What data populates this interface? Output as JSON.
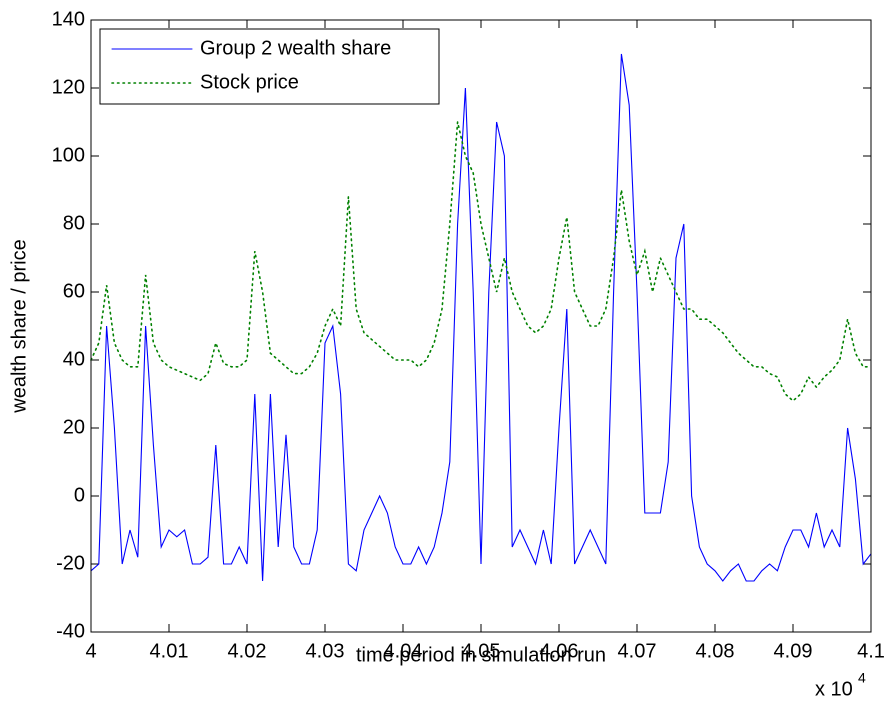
{
  "chart_data": {
    "type": "line",
    "x_label": "time period in simulation run",
    "y_label": "wealth share / price",
    "x_multiplier": "x 10",
    "x_multiplier_exponent": "4",
    "xlim": [
      4,
      4.1
    ],
    "xticks": [
      4,
      4.01,
      4.02,
      4.03,
      4.04,
      4.05,
      4.06,
      4.07,
      4.08,
      4.09,
      4.1
    ],
    "ylim": [
      -40,
      140
    ],
    "yticks": [
      -40,
      -20,
      0,
      20,
      40,
      60,
      80,
      100,
      120,
      140
    ],
    "legend": "upper left",
    "x": [
      4.0,
      4.001,
      4.002,
      4.003,
      4.004,
      4.005,
      4.006,
      4.007,
      4.008,
      4.009,
      4.01,
      4.011,
      4.012,
      4.013,
      4.014,
      4.015,
      4.016,
      4.017,
      4.018,
      4.019,
      4.02,
      4.021,
      4.022,
      4.023,
      4.024,
      4.025,
      4.026,
      4.027,
      4.028,
      4.029,
      4.03,
      4.031,
      4.032,
      4.033,
      4.034,
      4.035,
      4.036,
      4.037,
      4.038,
      4.039,
      4.04,
      4.041,
      4.042,
      4.043,
      4.044,
      4.045,
      4.046,
      4.047,
      4.048,
      4.049,
      4.05,
      4.051,
      4.052,
      4.053,
      4.054,
      4.055,
      4.056,
      4.057,
      4.058,
      4.059,
      4.06,
      4.061,
      4.062,
      4.063,
      4.064,
      4.065,
      4.066,
      4.067,
      4.068,
      4.069,
      4.07,
      4.071,
      4.072,
      4.073,
      4.074,
      4.075,
      4.076,
      4.077,
      4.078,
      4.079,
      4.08,
      4.081,
      4.082,
      4.083,
      4.084,
      4.085,
      4.086,
      4.087,
      4.088,
      4.089,
      4.09,
      4.091,
      4.092,
      4.093,
      4.094,
      4.095,
      4.096,
      4.097,
      4.098,
      4.099,
      4.1
    ],
    "series": [
      {
        "name": "Group 2 wealth share",
        "color": "#0000ff",
        "line_style": "solid",
        "values": [
          -22,
          -20,
          50,
          20,
          -20,
          -10,
          -18,
          50,
          15,
          -15,
          -10,
          -12,
          -10,
          -20,
          -20,
          -18,
          15,
          -20,
          -20,
          -15,
          -20,
          30,
          -25,
          30,
          -15,
          18,
          -15,
          -20,
          -20,
          -10,
          45,
          50,
          30,
          -20,
          -22,
          -10,
          -5,
          0,
          -5,
          -15,
          -20,
          -20,
          -15,
          -20,
          -15,
          -5,
          10,
          80,
          120,
          60,
          -20,
          60,
          110,
          100,
          -15,
          -10,
          -15,
          -20,
          -10,
          -20,
          20,
          55,
          -20,
          -15,
          -10,
          -15,
          -20,
          60,
          130,
          115,
          60,
          -5,
          -5,
          -5,
          10,
          70,
          80,
          0,
          -15,
          -20,
          -22,
          -25,
          -22,
          -20,
          -25,
          -25,
          -22,
          -20,
          -22,
          -15,
          -10,
          -10,
          -15,
          -5,
          -15,
          -10,
          -15,
          20,
          5,
          -20,
          -17
        ]
      },
      {
        "name": "Stock price",
        "color": "#008000",
        "line_style": "dotted",
        "values": [
          40,
          45,
          62,
          45,
          40,
          38,
          38,
          65,
          45,
          40,
          38,
          37,
          36,
          35,
          34,
          36,
          45,
          39,
          38,
          38,
          40,
          72,
          60,
          42,
          40,
          38,
          36,
          36,
          38,
          42,
          50,
          55,
          50,
          88,
          55,
          48,
          46,
          44,
          42,
          40,
          40,
          40,
          38,
          40,
          45,
          55,
          80,
          110,
          100,
          95,
          80,
          70,
          60,
          70,
          60,
          55,
          50,
          48,
          50,
          55,
          70,
          82,
          60,
          55,
          50,
          50,
          55,
          70,
          90,
          75,
          65,
          72,
          60,
          70,
          65,
          60,
          55,
          55,
          52,
          52,
          50,
          48,
          45,
          42,
          40,
          38,
          38,
          36,
          35,
          30,
          28,
          30,
          35,
          32,
          35,
          37,
          40,
          52,
          42,
          38,
          38
        ]
      }
    ]
  }
}
